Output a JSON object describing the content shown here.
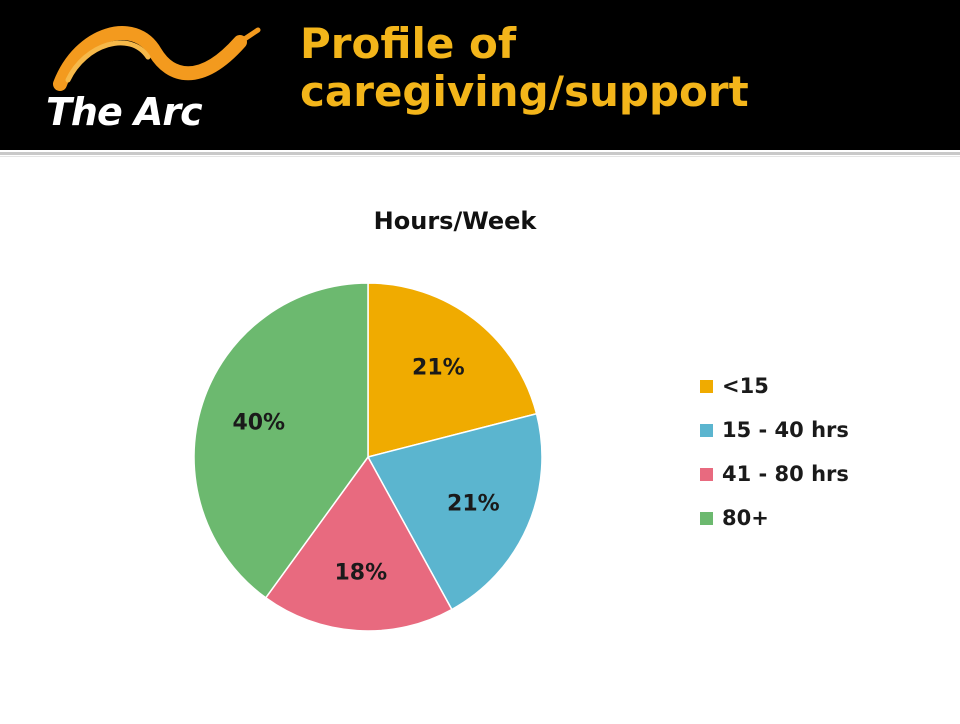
{
  "slide": {
    "title_line1": "Profile of",
    "title_line2": "caregiving/support",
    "logo_text": "The Arc"
  },
  "chart_data": {
    "type": "pie",
    "title": "Hours/Week",
    "categories": [
      "<15",
      "15 - 40 hrs",
      "41 - 80 hrs",
      "80+"
    ],
    "values": [
      21,
      21,
      18,
      40
    ],
    "data_labels": [
      "21%",
      "21%",
      "18%",
      "40%"
    ],
    "colors": [
      "#f0ab00",
      "#5bb5cf",
      "#e86a7f",
      "#6cb96f"
    ],
    "legend_position": "right"
  }
}
